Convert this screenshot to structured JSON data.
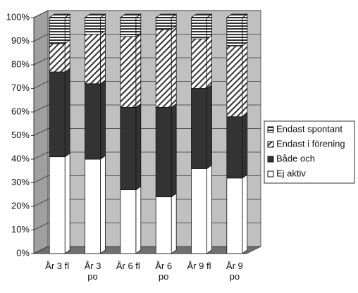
{
  "chart_data": {
    "type": "stacked-bar-3d",
    "categories": [
      "År 3 fl",
      "År 3\npo",
      "År 6 fl",
      "År 6\npo",
      "År 9 fl",
      "År 9\npo"
    ],
    "series": [
      {
        "name": "Ej aktiv",
        "color": "#ffffff",
        "pattern": "solid",
        "values": [
          41,
          40,
          27,
          24,
          36,
          32
        ]
      },
      {
        "name": "Både och",
        "color": "#333333",
        "pattern": "solid",
        "values": [
          36,
          32,
          35,
          38,
          34,
          26
        ]
      },
      {
        "name": "Endast i förening",
        "color": "#333333",
        "pattern": "diagonal",
        "values": [
          12,
          21,
          30,
          33,
          21,
          30
        ]
      },
      {
        "name": "Endast spontant",
        "color": "#333333",
        "pattern": "horizontal",
        "values": [
          11,
          7,
          8,
          5,
          9,
          12
        ]
      }
    ],
    "ylim": [
      0,
      100
    ],
    "yticks": [
      {
        "value": 0,
        "label": "0%"
      },
      {
        "value": 10,
        "label": "10%"
      },
      {
        "value": 20,
        "label": "20%"
      },
      {
        "value": 30,
        "label": "30%"
      },
      {
        "value": 40,
        "label": "40%"
      },
      {
        "value": 50,
        "label": "50%"
      },
      {
        "value": 60,
        "label": "60%"
      },
      {
        "value": 70,
        "label": "70%"
      },
      {
        "value": 80,
        "label": "80%"
      },
      {
        "value": 90,
        "label": "90%"
      },
      {
        "value": 100,
        "label": "100%"
      }
    ],
    "grid": true,
    "legend": "right"
  }
}
